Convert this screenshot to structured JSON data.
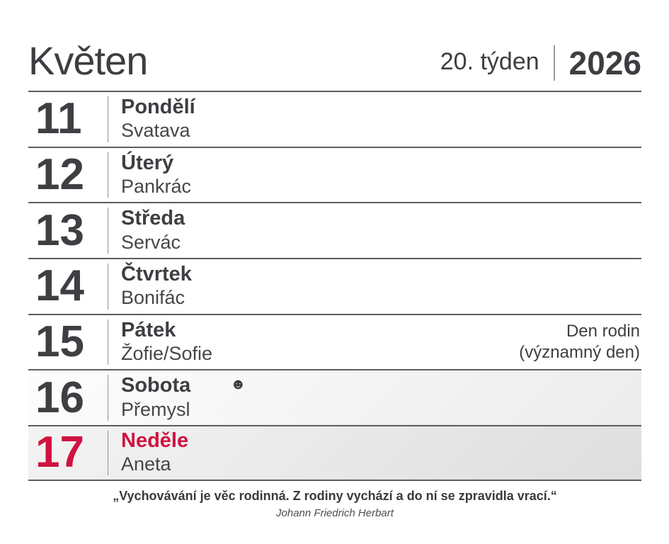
{
  "colors": {
    "accent_red": "#d11240",
    "text_dark": "#3d3f42",
    "line_gray": "#5d5d5f",
    "weekend_bg_light": "#ececec",
    "sunday_bg": "#dedede"
  },
  "header": {
    "month": "Květen",
    "week": "20. týden",
    "year": "2026"
  },
  "days": [
    {
      "num": "11",
      "day": "Pondělí",
      "name": "Svatava"
    },
    {
      "num": "12",
      "day": "Úterý",
      "name": "Pankrác"
    },
    {
      "num": "13",
      "day": "Středa",
      "name": "Servác"
    },
    {
      "num": "14",
      "day": "Čtvrtek",
      "name": "Bonifác"
    },
    {
      "num": "15",
      "day": "Pátek",
      "name": "Žofie/Sofie",
      "note_line1": "Den rodin",
      "note_line2": "(významný den)"
    },
    {
      "num": "16",
      "day": "Sobota",
      "name": "Přemysl",
      "moon_icon": "☻"
    },
    {
      "num": "17",
      "day": "Neděle",
      "name": "Aneta"
    }
  ],
  "footer": {
    "quote": "„Vychovávání je věc rodinná. Z rodiny vychází a do ní se zpravidla vrací.“",
    "author": "Johann Friedrich Herbart"
  }
}
